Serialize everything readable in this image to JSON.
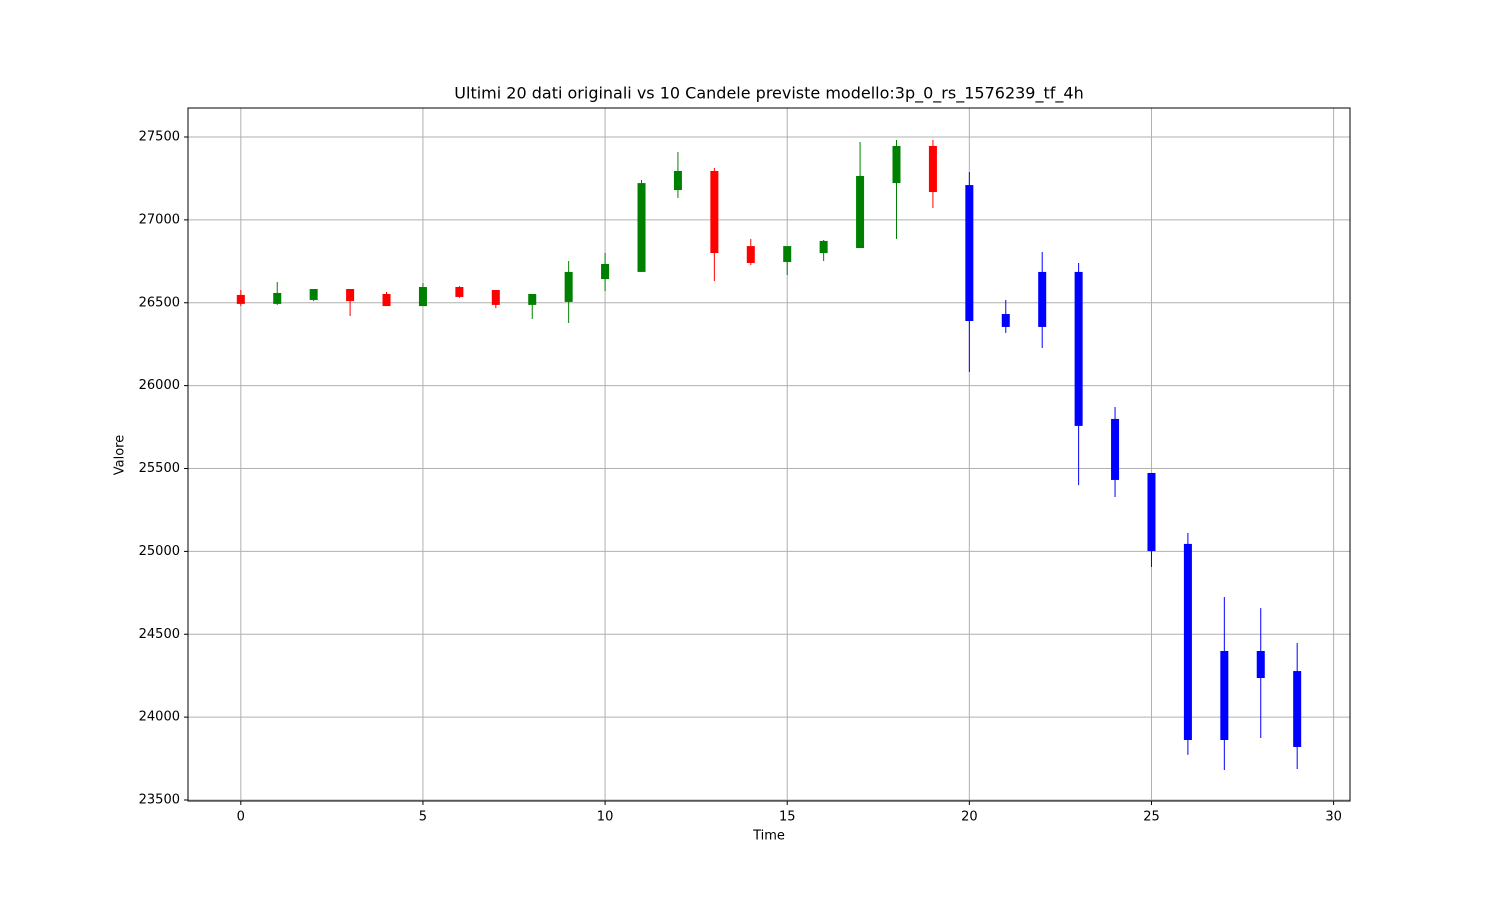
{
  "chart_data": {
    "type": "candlestick",
    "title": "Ultimi 20 dati originali vs 10 Candele previste modello:3p_0_rs_1576239_tf_4h",
    "x_label": "Time",
    "y_label": "Valore",
    "xlim": [
      -1.45,
      30.45
    ],
    "xticks": [
      0,
      5,
      10,
      15,
      20,
      25,
      30
    ],
    "ylim": [
      23494,
      27675
    ],
    "yticks": [
      23500,
      24000,
      24500,
      25000,
      25500,
      26000,
      26500,
      27000,
      27500
    ],
    "grid": true,
    "series": [
      {
        "up_color": "#008000",
        "down_color": "#ff0000",
        "x": [
          0,
          1,
          2,
          3,
          4,
          5,
          6,
          7,
          8,
          9,
          10,
          11,
          12,
          13,
          14,
          15,
          16,
          17,
          18,
          19
        ],
        "open": [
          26547,
          26493,
          26517,
          26583,
          26553,
          26480,
          26595,
          26577,
          26487,
          26505,
          26643,
          26686,
          27180,
          27295,
          26842,
          26746,
          26800,
          26830,
          27222,
          27446
        ],
        "high": [
          26577,
          26625,
          26583,
          26583,
          26565,
          26619,
          26601,
          26577,
          26553,
          26752,
          26800,
          27241,
          27410,
          27313,
          26885,
          26842,
          26879,
          27470,
          27482,
          27482
        ],
        "low": [
          26480,
          26487,
          26510,
          26420,
          26480,
          26480,
          26529,
          26468,
          26402,
          26378,
          26571,
          26686,
          27132,
          26631,
          26728,
          26667,
          26752,
          26830,
          26885,
          27072
        ],
        "close": [
          26493,
          26559,
          26583,
          26510,
          26480,
          26595,
          26535,
          26487,
          26553,
          26686,
          26734,
          27222,
          27295,
          26800,
          26740,
          26842,
          26873,
          27265,
          27446,
          27168
        ]
      },
      {
        "color": "#0000ff",
        "x": [
          20,
          21,
          22,
          23,
          24,
          25,
          26,
          27,
          28,
          29
        ],
        "open": [
          27210,
          26432,
          26686,
          26686,
          25799,
          25473,
          25045,
          24399,
          24399,
          24278
        ],
        "high": [
          27289,
          26517,
          26806,
          26740,
          25871,
          25473,
          25111,
          24725,
          24658,
          24447
        ],
        "low": [
          26082,
          26318,
          26227,
          25400,
          25328,
          24906,
          23772,
          23681,
          23874,
          23687
        ],
        "close": [
          26390,
          26354,
          26354,
          25757,
          25431,
          25002,
          23862,
          23862,
          24236,
          23820
        ]
      }
    ]
  }
}
